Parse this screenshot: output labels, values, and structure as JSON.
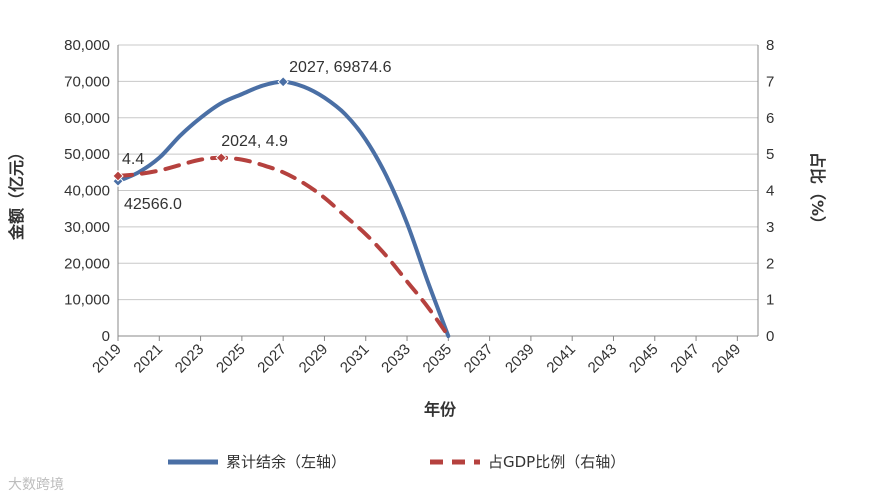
{
  "chart_data": {
    "type": "line",
    "xlabel": "年份",
    "y_left_label": "金额（亿元）",
    "y_right_label": "占比（%）",
    "x_ticks": [
      "2019",
      "2021",
      "2023",
      "2025",
      "2027",
      "2029",
      "2031",
      "2033",
      "2035",
      "2037",
      "2039",
      "2041",
      "2043",
      "2045",
      "2047",
      "2049"
    ],
    "x_range": [
      2019,
      2050
    ],
    "y_left_ticks": [
      "0",
      "10,000",
      "20,000",
      "30,000",
      "40,000",
      "50,000",
      "60,000",
      "70,000",
      "80,000"
    ],
    "ylim_left": [
      0,
      80000
    ],
    "y_right_ticks": [
      "0",
      "1",
      "2",
      "3",
      "4",
      "5",
      "6",
      "7",
      "8"
    ],
    "ylim_right": [
      0,
      8
    ],
    "grid": true,
    "legend_position": "bottom",
    "series": [
      {
        "name": "累计结余（左轴）",
        "axis": "left",
        "color": "#4a6fa5",
        "style": "solid",
        "x": [
          2019,
          2020,
          2021,
          2022,
          2023,
          2024,
          2025,
          2026,
          2027,
          2028,
          2029,
          2030,
          2031,
          2032,
          2033,
          2034,
          2035
        ],
        "values": [
          42566.0,
          45000,
          49000,
          55000,
          60000,
          64000,
          66500,
          68800,
          69874.6,
          68500,
          65500,
          61000,
          54000,
          44000,
          31000,
          15000,
          0
        ]
      },
      {
        "name": "占GDP比例（右轴）",
        "axis": "right",
        "color": "#b5413e",
        "style": "dashed",
        "x": [
          2019,
          2020,
          2021,
          2022,
          2023,
          2024,
          2025,
          2026,
          2027,
          2028,
          2029,
          2030,
          2031,
          2032,
          2033,
          2034,
          2035
        ],
        "values": [
          4.4,
          4.45,
          4.55,
          4.7,
          4.85,
          4.9,
          4.85,
          4.7,
          4.5,
          4.2,
          3.8,
          3.3,
          2.8,
          2.2,
          1.5,
          0.8,
          0
        ]
      }
    ],
    "annotations": [
      {
        "text": "2027, 69874.6",
        "series": 0,
        "x": 2027,
        "y": 69874.6
      },
      {
        "text": "42566.0",
        "series": 0,
        "x": 2019,
        "y": 42566.0
      },
      {
        "text": "2024, 4.9",
        "series": 1,
        "x": 2024,
        "y": 4.9
      },
      {
        "text": "4.4",
        "series": 1,
        "x": 2019,
        "y": 4.4
      }
    ]
  },
  "watermark": "大数跨境"
}
